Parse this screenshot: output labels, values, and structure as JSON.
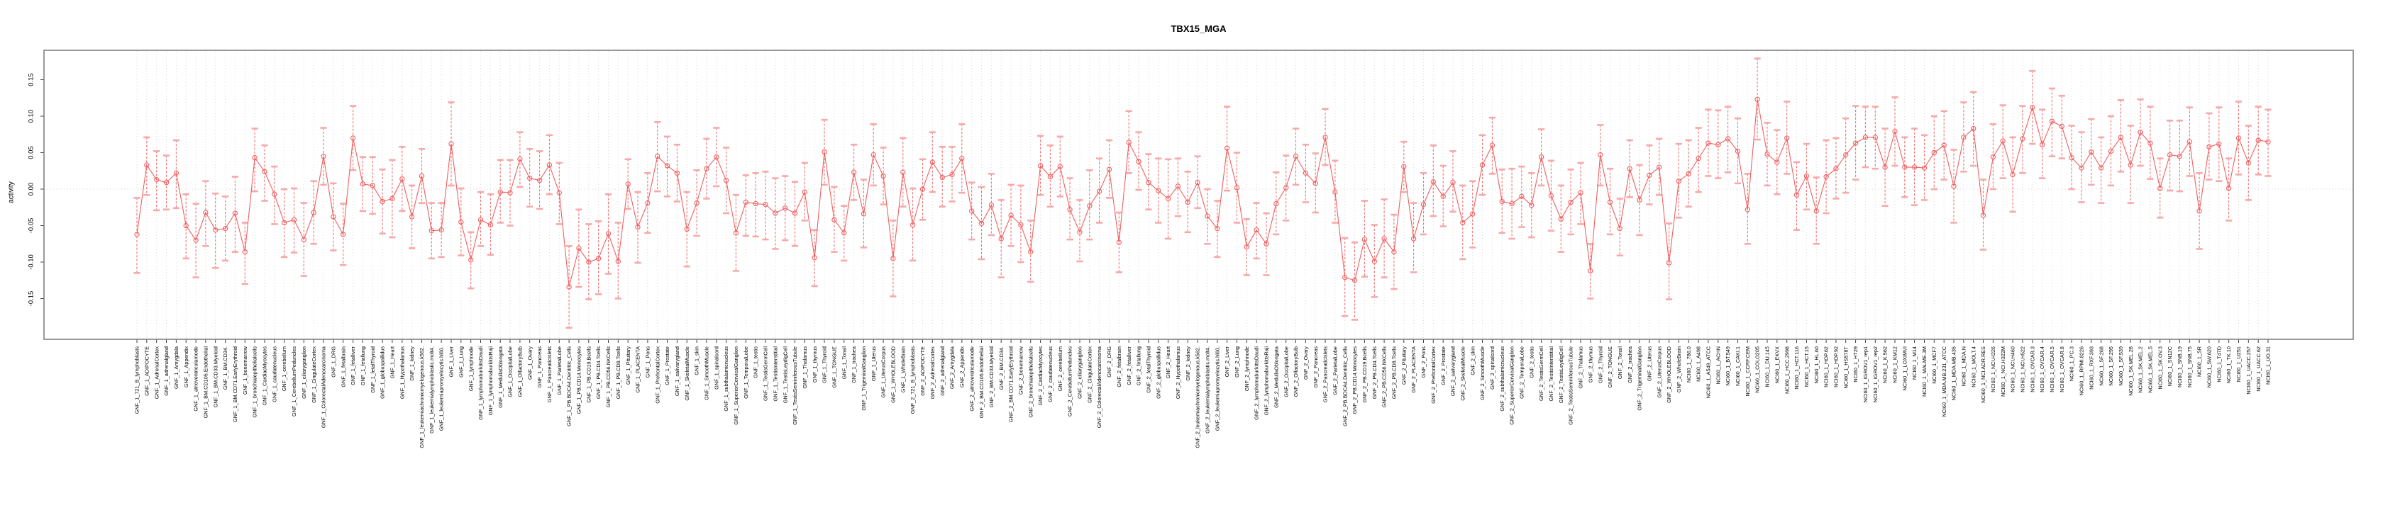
{
  "title": "TBX15_MGA",
  "axes": {
    "y_label": "activity",
    "y_tick_labels": [
      "0.15",
      "0.10",
      "0.05",
      "0.00",
      "-0.05",
      "-0.10",
      "-0.15"
    ]
  },
  "colors": {
    "point_line": "#f15f5f",
    "errorbar_line": "#f07070",
    "errorbar_cap": "#f7a8a8",
    "gridline": "#dcdcdc",
    "box_border": "#808080",
    "tick": "#404040",
    "text": "#000000",
    "background": "#ffffff"
  },
  "chart_data": {
    "type": "line",
    "title": "TBX15_MGA",
    "xlabel": "",
    "ylabel": "activity",
    "ylim": [
      -0.206,
      0.19
    ],
    "yticks": [
      0.15,
      0.1,
      0.05,
      0.0,
      -0.05,
      -0.1,
      -0.15
    ],
    "grid": "vertical dotted gridline per category; dotted horizontal line at y=0",
    "legend": "none",
    "marker": "open-circle with vertical error bars and caps, points connected by line",
    "categories": [
      "GNF_1_721_B_lymphoblasts",
      "GNF_1_ADIPOCYTE",
      "GNF_1_AdrenalCortex",
      "GNF_1_adrenalgland",
      "GNF_1_Amygdala",
      "GNF_1_Appendix",
      "GNF_1_atrioventricularnode",
      "GNF_1_BM.CD105.Endothelial",
      "GNF_1_BM.CD33.Myeloid",
      "GNF_1_BM.CD34.",
      "GNF_1_BM.CD71.EarlyErythroid",
      "GNF_1_bonemarrow",
      "GNF_1_bronchialepithelialcells",
      "GNF_1_CardiacMyocytes",
      "GNF_1_caudatenucleus",
      "GNF_1_cerebellum",
      "GNF_1_CerebellumPeduncles",
      "GNF_1_ciliaryganglion",
      "GNF_1_CingulateCortex",
      "GNF_1_ColorectalAdenocarcinoma",
      "GNF_1_DRG",
      "GNF_1_fetalbrain",
      "GNF_1_fetalliver",
      "GNF_1_fetallung",
      "GNF_1_fetalThyroid",
      "GNF_1_globuspallidus",
      "GNF_1_Heart",
      "GNF_1_Hypothalamus",
      "GNF_1_kidney",
      "GNF_1_leukemiachronicmyelogenous.k562.",
      "GNF_1_leukemialymphoblastic.molt4.",
      "GNF_1_leukemiapromyelocytic.hl60.",
      "GNF_1_Liver",
      "GNF_1_Lung",
      "GNF_1_lymphnode",
      "GNF_1_lymphomaburkittsDaudi",
      "GNF_1_lymphomaburkittsRaji",
      "GNF_1_MedullaOblongata",
      "GNF_1_OccipitalLobe",
      "GNF_1_OlfactoryBulb",
      "GNF_1_Ovary",
      "GNF_1_Pancreas",
      "GNF_1_PancreaticIslets",
      "GNF_1_ParietalLobe",
      "GNF_1_PB.BDCA4.Dentritic_Cells",
      "GNF_1_PB.CD14.Monocytes",
      "GNF_1_PB.CD19.Bcells",
      "GNF_1_PB.CD4.Tcells",
      "GNF_1_PB.CD56.NKCells",
      "GNF_1_PB.CD8.Tcells",
      "GNF_1_Pituitary",
      "GNF_1_PLACENTA",
      "GNF_1_Pons",
      "GNF_1_PrefrontalCortex",
      "GNF_1_Prostate",
      "GNF_1_salivarygland",
      "GNF_1_SkeletalMuscle",
      "GNF_1_skin",
      "GNF_1_SmoothMuscle",
      "GNF_1_spinalcord",
      "GNF_1_subthalamicnucleus",
      "GNF_1_SuperiorCervicalGanglion",
      "GNF_1_TemporalLobe",
      "GNF_1_testis",
      "GNF_1_TestisGermCell",
      "GNF_1_TestisInterstitial",
      "GNF_1_TestisLeydigCell",
      "GNF_1_TestisSeminiferousTubule",
      "GNF_1_Thalamus",
      "GNF_1_thymus",
      "GNF_1_Thyroid",
      "GNF_1_TONGUE",
      "GNF_1_Tonsil",
      "GNF_1_trachea",
      "GNF_1_TrigeminalGanglion",
      "GNF_1_Uterus",
      "GNF_1_UterusCorpus",
      "GNF_1_WHOLEBLOOD",
      "GNF_1_WholeBrain",
      "GNF_2_721_B_lymphoblasts",
      "GNF_2_ADIPOCYTE",
      "GNF_2_AdrenalCortex",
      "GNF_2_adrenalgland",
      "GNF_2_Amygdala",
      "GNF_2_Appendix",
      "GNF_2_atrioventricularnode",
      "GNF_2_BM.CD105.Endothelial",
      "GNF_2_BM.CD33.Myeloid",
      "GNF_2_BM.CD34.",
      "GNF_2_BM.CD71.EarlyErythroid",
      "GNF_2_bonemarrow",
      "GNF_2_bronchialepithelialcells",
      "GNF_2_CardiacMyocytes",
      "GNF_2_caudatenucleus",
      "GNF_2_cerebellum",
      "GNF_2_CerebellumPeduncles",
      "GNF_2_ciliaryganglion",
      "GNF_2_CingulateCortex",
      "GNF_2_ColorectalAdenocarcinoma",
      "GNF_2_DRG",
      "GNF_2_fetalbrain",
      "GNF_2_fetalliver",
      "GNF_2_fetallung",
      "GNF_2_fetalThyroid",
      "GNF_2_globuspallidus",
      "GNF_2_Heart",
      "GNF_2_Hypothalamus",
      "GNF_2_kidney",
      "GNF_2_leukemiachronicmyelogenous.k562.",
      "GNF_2_leukemialymphoblastic.molt4.",
      "GNF_2_leukemiapromyelocytic.hl60.",
      "GNF_2_Liver",
      "GNF_2_Lung",
      "GNF_2_lymphnode",
      "GNF_2_lymphomaburkittsDaudi",
      "GNF_2_lymphomaburkittsRaji",
      "GNF_2_MedullaOblongata",
      "GNF_2_OccipitalLobe",
      "GNF_2_OlfactoryBulb",
      "GNF_2_Ovary",
      "GNF_2_Pancreas",
      "GNF_2_PancreaticIslets",
      "GNF_2_ParietalLobe",
      "GNF_2_PB.BDCA4.Dentritic_Cells",
      "GNF_2_PB.CD14.Monocytes",
      "GNF_2_PB.CD19.Bcells",
      "GNF_2_PB.CD4.Tcells",
      "GNF_2_PB.CD56.NKCells",
      "GNF_2_PB.CD8.Tcells",
      "GNF_2_Pituitary",
      "GNF_2_PLACENTA",
      "GNF_2_Pons",
      "GNF_2_PrefrontalCortex",
      "GNF_2_Prostate",
      "GNF_2_salivarygland",
      "GNF_2_SkeletalMuscle",
      "GNF_2_skin",
      "GNF_2_SmoothMuscle",
      "GNF_2_spinalcord",
      "GNF_2_subthalamicnucleus",
      "GNF_2_SuperiorCervicalGanglion",
      "GNF_2_TemporalLobe",
      "GNF_2_testis",
      "GNF_2_TestisGermCell",
      "GNF_2_TestisInterstitial",
      "GNF_2_TestisLeydigCell",
      "GNF_2_TestisSeminiferousTubule",
      "GNF_2_Thalamus",
      "GNF_2_thymus",
      "GNF_2_Thyroid",
      "GNF_2_TONGUE",
      "GNF_2_Tonsil",
      "GNF_2_trachea",
      "GNF_2_TrigeminalGanglion",
      "GNF_2_Uterus",
      "GNF_2_UterusCorpus",
      "GNF_2_WHOLEBLOOD",
      "GNF_2_WholeBrain",
      "NCI60_1_786.0",
      "NCI60_1_A498",
      "NCI60_1_A549_ATCC",
      "NCI60_1_ACHN",
      "NCI60_1_BT.549",
      "NCI60_1_CAKI.1",
      "NCI60_1_CCRF.CEM",
      "NCI60_1_COLO205",
      "NCI60_1_DU.145",
      "NCI60_1_EKVX",
      "NCI60_1_HCC.2998",
      "NCI60_1_HCT.116",
      "NCI60_1_HCT.15",
      "NCI60_1_HL.60",
      "NCI60_1_HOP.62",
      "NCI60_1_HOP.92",
      "NCI60_1_HS578T",
      "NCI60_1_HT29",
      "NCI60_1_IGROV1_rep1",
      "NCI60_1_IGROV1_rep2",
      "NCI60_1_K.562",
      "NCI60_1_KM12",
      "NCI60_1_LOXIMVI",
      "NCI60_1_M14",
      "NCI60_1_MALME.3M",
      "NCI60_1_MCF7",
      "NCI60_1_MDA.MB.231_ATCC",
      "NCI60_1_MDA.MB.435",
      "NCI60_1_MDA.N",
      "NCI60_1_MOLT.4",
      "NCI60_1_NCI.ADR.RES",
      "NCI60_1_NCI.H226",
      "NCI60_1_NCI.H322M",
      "NCI60_1_NCI.H460",
      "NCI60_1_NCI.H522",
      "NCI60_1_OVCAR.3",
      "NCI60_1_OVCAR.4",
      "NCI60_1_OVCAR.5",
      "NCI60_1_OVCAR.8",
      "NCI60_1_PC.3",
      "NCI60_1_RPMI.8226",
      "NCI60_1_RXF.393",
      "NCI60_1_SF.268",
      "NCI60_1_SF.295",
      "NCI60_1_SF.539",
      "NCI60_1_SK.MEL.28",
      "NCI60_1_SK.MEL.2",
      "NCI60_1_SK.MEL.5",
      "NCI60_1_SK.OV.3",
      "NCI60_1_SN12C",
      "NCI60_1_SNB.19",
      "NCI60_1_SNB.75",
      "NCI60_1_SR",
      "NCI60_1_SW.620",
      "NCI60_1_T47D",
      "NCI60_1_TK.10",
      "NCI60_1_U251",
      "NCI60_1_UACC.257",
      "NCI60_1_UACC.62",
      "NCI60_1_UO.31"
    ],
    "values": [
      -0.062,
      0.033,
      0.013,
      0.009,
      0.022,
      -0.05,
      -0.07,
      -0.032,
      -0.056,
      -0.054,
      -0.033,
      -0.086,
      0.043,
      0.024,
      -0.007,
      -0.046,
      -0.042,
      -0.069,
      -0.032,
      0.045,
      -0.038,
      -0.062,
      0.07,
      0.007,
      0.005,
      -0.017,
      -0.013,
      0.014,
      -0.038,
      0.018,
      -0.057,
      -0.056,
      0.062,
      -0.045,
      -0.097,
      -0.042,
      -0.049,
      -0.004,
      -0.005,
      0.041,
      0.015,
      0.012,
      0.033,
      -0.005,
      -0.134,
      -0.081,
      -0.1,
      -0.095,
      -0.061,
      -0.099,
      0.007,
      -0.052,
      -0.019,
      0.045,
      0.032,
      0.022,
      -0.055,
      -0.019,
      0.028,
      0.044,
      0.012,
      -0.06,
      -0.018,
      -0.02,
      -0.021,
      -0.033,
      -0.026,
      -0.033,
      -0.004,
      -0.094,
      0.051,
      -0.042,
      -0.06,
      0.023,
      -0.034,
      0.047,
      0.018,
      -0.095,
      0.023,
      -0.049,
      0.0,
      0.037,
      0.016,
      0.02,
      0.042,
      -0.03,
      -0.047,
      -0.022,
      -0.068,
      -0.036,
      -0.049,
      -0.086,
      0.032,
      0.017,
      0.031,
      -0.028,
      -0.059,
      -0.023,
      -0.003,
      0.027,
      -0.073,
      0.064,
      0.038,
      0.009,
      -0.002,
      -0.013,
      0.004,
      -0.018,
      0.009,
      -0.037,
      -0.054,
      0.056,
      0.002,
      -0.079,
      -0.056,
      -0.075,
      -0.02,
      0.002,
      0.045,
      0.022,
      0.008,
      0.071,
      -0.004,
      -0.121,
      -0.125,
      -0.069,
      -0.099,
      -0.068,
      -0.086,
      0.031,
      -0.068,
      -0.021,
      0.01,
      -0.01,
      0.009,
      -0.046,
      -0.034,
      0.033,
      0.06,
      -0.017,
      -0.02,
      -0.01,
      -0.022,
      0.044,
      -0.009,
      -0.041,
      -0.018,
      -0.005,
      -0.112,
      0.047,
      -0.018,
      -0.054,
      0.028,
      -0.015,
      0.019,
      0.03,
      -0.101,
      0.011,
      0.021,
      0.042,
      0.063,
      0.061,
      0.069,
      0.052,
      -0.028,
      0.123,
      0.048,
      0.037,
      0.07,
      -0.008,
      0.018,
      -0.03,
      0.017,
      0.028,
      0.047,
      0.063,
      0.071,
      0.071,
      0.03,
      0.079,
      0.03,
      0.03,
      0.029,
      0.05,
      0.06,
      0.004,
      0.071,
      0.083,
      -0.036,
      0.044,
      0.066,
      0.02,
      0.069,
      0.112,
      0.061,
      0.093,
      0.086,
      0.043,
      0.029,
      0.051,
      0.029,
      0.052,
      0.071,
      0.033,
      0.078,
      0.063,
      0.001,
      0.047,
      0.045,
      0.065,
      -0.03,
      0.058,
      0.062,
      0.001,
      0.07,
      0.036,
      0.067,
      0.065
    ],
    "err_lo": [
      -0.115,
      -0.008,
      -0.029,
      -0.028,
      -0.026,
      -0.095,
      -0.121,
      -0.078,
      -0.108,
      -0.098,
      -0.086,
      -0.13,
      -0.003,
      -0.016,
      -0.048,
      -0.093,
      -0.087,
      -0.119,
      -0.075,
      0.006,
      -0.084,
      -0.104,
      0.026,
      -0.03,
      -0.034,
      -0.061,
      -0.066,
      -0.03,
      -0.081,
      -0.019,
      -0.095,
      -0.093,
      0.005,
      -0.091,
      -0.136,
      -0.078,
      -0.09,
      -0.046,
      -0.05,
      0.003,
      -0.024,
      -0.027,
      -0.007,
      -0.048,
      -0.19,
      -0.134,
      -0.151,
      -0.144,
      -0.116,
      -0.15,
      -0.027,
      -0.101,
      -0.06,
      -0.003,
      -0.01,
      -0.017,
      -0.106,
      -0.064,
      -0.013,
      0.004,
      -0.033,
      -0.112,
      -0.064,
      -0.065,
      -0.069,
      -0.082,
      -0.07,
      -0.078,
      -0.043,
      -0.133,
      0.006,
      -0.086,
      -0.098,
      -0.015,
      -0.08,
      0.005,
      -0.021,
      -0.147,
      -0.024,
      -0.098,
      -0.042,
      -0.004,
      -0.024,
      -0.017,
      -0.005,
      -0.069,
      -0.096,
      -0.063,
      -0.121,
      -0.078,
      -0.1,
      -0.127,
      -0.008,
      -0.024,
      -0.01,
      -0.069,
      -0.099,
      -0.069,
      -0.046,
      -0.012,
      -0.114,
      0.022,
      -0.001,
      -0.028,
      -0.046,
      -0.068,
      -0.037,
      -0.059,
      -0.026,
      -0.075,
      -0.093,
      -0.002,
      -0.046,
      -0.118,
      -0.095,
      -0.118,
      -0.062,
      -0.043,
      0.006,
      -0.018,
      -0.032,
      0.033,
      -0.046,
      -0.174,
      -0.179,
      -0.12,
      -0.148,
      -0.121,
      -0.137,
      -0.004,
      -0.114,
      -0.062,
      -0.037,
      -0.051,
      -0.031,
      -0.096,
      -0.08,
      -0.008,
      0.021,
      -0.06,
      -0.068,
      -0.052,
      -0.066,
      0.005,
      -0.057,
      -0.086,
      -0.062,
      -0.048,
      -0.15,
      0.005,
      -0.062,
      -0.091,
      -0.011,
      -0.063,
      -0.021,
      -0.008,
      -0.151,
      -0.039,
      -0.024,
      -0.004,
      0.018,
      0.015,
      0.023,
      0.008,
      -0.075,
      0.068,
      0.005,
      -0.007,
      0.021,
      -0.056,
      -0.028,
      -0.075,
      -0.033,
      -0.013,
      -0.005,
      0.013,
      0.03,
      0.028,
      -0.023,
      0.032,
      -0.011,
      -0.022,
      -0.015,
      0.0,
      0.013,
      -0.046,
      0.024,
      0.032,
      -0.083,
      0.0,
      0.015,
      -0.031,
      0.022,
      0.062,
      0.015,
      0.045,
      0.042,
      0.0,
      -0.018,
      0.006,
      -0.019,
      0.005,
      0.024,
      -0.019,
      0.032,
      0.014,
      -0.039,
      -0.002,
      -0.003,
      0.018,
      -0.082,
      0.013,
      0.011,
      -0.043,
      0.02,
      -0.015,
      0.02,
      0.018
    ],
    "err_hi": [
      -0.012,
      0.071,
      0.052,
      0.046,
      0.067,
      -0.007,
      -0.02,
      0.011,
      -0.006,
      -0.01,
      0.017,
      -0.046,
      0.083,
      0.06,
      0.031,
      0.0,
      0.001,
      -0.019,
      0.011,
      0.084,
      0.008,
      -0.02,
      0.114,
      0.044,
      0.044,
      0.027,
      0.04,
      0.058,
      0.005,
      0.055,
      -0.019,
      -0.019,
      0.119,
      0.001,
      -0.059,
      -0.004,
      -0.007,
      0.04,
      0.04,
      0.078,
      0.055,
      0.052,
      0.074,
      0.036,
      -0.078,
      -0.028,
      -0.048,
      -0.044,
      -0.007,
      -0.046,
      0.041,
      -0.004,
      0.022,
      0.092,
      0.072,
      0.061,
      -0.004,
      0.026,
      0.069,
      0.084,
      0.057,
      -0.008,
      0.019,
      0.022,
      0.024,
      0.015,
      0.018,
      0.01,
      0.036,
      -0.056,
      0.095,
      0.003,
      -0.023,
      0.061,
      0.013,
      0.089,
      0.057,
      -0.043,
      0.07,
      0.001,
      0.041,
      0.078,
      0.058,
      0.058,
      0.089,
      0.009,
      0.003,
      0.021,
      -0.015,
      0.006,
      0.005,
      -0.043,
      0.073,
      0.06,
      0.072,
      0.015,
      -0.015,
      0.026,
      0.042,
      0.067,
      -0.032,
      0.107,
      0.078,
      0.048,
      0.042,
      0.041,
      0.042,
      0.024,
      0.045,
      0.0,
      -0.016,
      0.113,
      0.05,
      -0.041,
      -0.019,
      -0.033,
      0.023,
      0.046,
      0.083,
      0.061,
      0.049,
      0.11,
      0.039,
      -0.067,
      -0.073,
      -0.016,
      -0.049,
      -0.014,
      -0.035,
      0.065,
      -0.019,
      0.022,
      0.06,
      0.032,
      0.052,
      0.005,
      0.011,
      0.074,
      0.098,
      0.027,
      0.028,
      0.031,
      0.022,
      0.082,
      0.039,
      0.005,
      0.027,
      0.036,
      -0.075,
      0.088,
      0.028,
      -0.013,
      0.067,
      0.033,
      0.06,
      0.069,
      -0.047,
      0.062,
      0.067,
      0.084,
      0.109,
      0.108,
      0.113,
      0.097,
      0.021,
      0.179,
      0.091,
      0.081,
      0.12,
      0.037,
      0.062,
      0.016,
      0.067,
      0.07,
      0.097,
      0.114,
      0.113,
      0.113,
      0.083,
      0.126,
      0.071,
      0.083,
      0.074,
      0.1,
      0.107,
      0.054,
      0.119,
      0.133,
      0.013,
      0.089,
      0.115,
      0.071,
      0.114,
      0.162,
      0.109,
      0.138,
      0.128,
      0.087,
      0.078,
      0.096,
      0.071,
      0.1,
      0.122,
      0.087,
      0.123,
      0.113,
      0.042,
      0.094,
      0.094,
      0.112,
      0.022,
      0.104,
      0.112,
      0.042,
      0.12,
      0.087,
      0.113,
      0.109
    ]
  }
}
